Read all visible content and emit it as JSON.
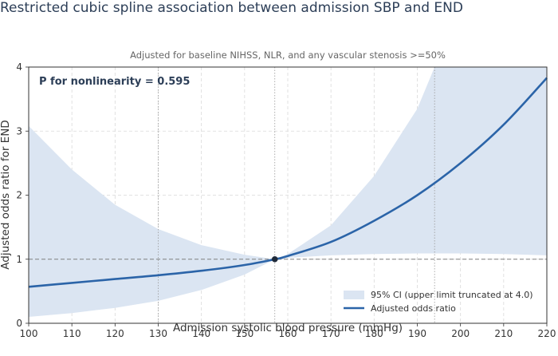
{
  "chart_data": {
    "type": "line",
    "title": "Restricted cubic spline association between admission SBP and END",
    "subtitle": "Adjusted for baseline NIHSS, NLR, and any vascular stenosis >=50%",
    "xlabel": "Admission systolic blood pressure (mmHg)",
    "ylabel": "Adjusted odds ratio for END",
    "xlim": [
      100,
      220
    ],
    "ylim": [
      0,
      4
    ],
    "x_ticks": [
      100,
      110,
      120,
      130,
      140,
      150,
      160,
      170,
      180,
      190,
      200,
      210,
      220
    ],
    "y_ticks": [
      0,
      1,
      2,
      3,
      4
    ],
    "grid": true,
    "reference_line": {
      "y": 1.0,
      "style": "dashed"
    },
    "vertical_reference_lines": [
      130,
      157,
      194
    ],
    "reference_point": {
      "x": 157,
      "y": 1.0
    },
    "annotation": "P for nonlinearity = 0.595",
    "legend_position": "lower-right",
    "series": [
      {
        "name": "Adjusted odds ratio",
        "kind": "line",
        "color": "#2b64a8",
        "x": [
          100,
          110,
          120,
          130,
          140,
          150,
          157,
          160,
          170,
          180,
          190,
          200,
          210,
          220
        ],
        "y": [
          0.57,
          0.63,
          0.69,
          0.75,
          0.82,
          0.91,
          1.0,
          1.05,
          1.27,
          1.6,
          2.0,
          2.5,
          3.1,
          3.83
        ]
      },
      {
        "name": "95% CI (upper limit truncated at 4.0)",
        "kind": "band",
        "color": "#dbe5f2",
        "x": [
          100,
          110,
          120,
          130,
          140,
          150,
          157,
          160,
          170,
          180,
          190,
          194,
          200,
          210,
          220
        ],
        "lower": [
          0.1,
          0.16,
          0.24,
          0.35,
          0.52,
          0.76,
          1.0,
          1.02,
          1.06,
          1.08,
          1.09,
          1.09,
          1.09,
          1.08,
          1.06
        ],
        "upper": [
          3.08,
          2.4,
          1.85,
          1.47,
          1.22,
          1.07,
          1.0,
          1.08,
          1.53,
          2.3,
          3.35,
          4.0,
          4.0,
          4.0,
          4.0
        ]
      }
    ]
  }
}
